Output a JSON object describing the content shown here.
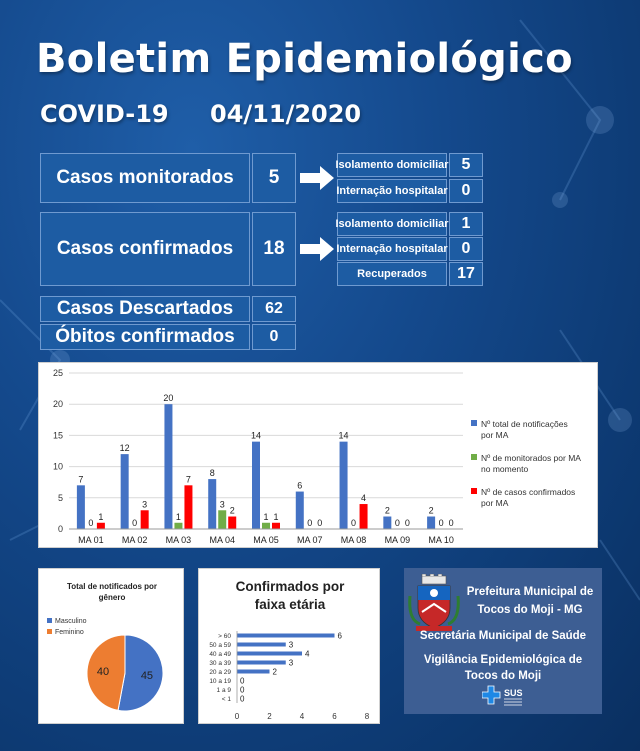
{
  "header": {
    "title": "Boletim Epidemiológico",
    "disease": "COVID-19",
    "date": "04/11/2020"
  },
  "monitorados": {
    "label": "Casos monitorados",
    "value": "5",
    "sub": [
      {
        "label": "Isolamento domiciliar",
        "value": "5"
      },
      {
        "label": "Internação hospitalar",
        "value": "0"
      }
    ]
  },
  "confirmados": {
    "label": "Casos confirmados",
    "value": "18",
    "sub": [
      {
        "label": "Isolamento domiciliar",
        "value": "1"
      },
      {
        "label": "Internação hospitalar",
        "value": "0"
      },
      {
        "label": "Recuperados",
        "value": "17"
      }
    ]
  },
  "descartados": {
    "label": "Casos Descartados",
    "value": "62"
  },
  "obitos": {
    "label": "Óbitos confirmados",
    "value": "0"
  },
  "colors": {
    "blue": "#4472c4",
    "green": "#70ad47",
    "red": "#ff0000",
    "orange": "#ed7d31",
    "pieBlue": "#4472c4",
    "hbar": "#4472c4"
  },
  "chart_data": [
    {
      "type": "bar",
      "categories": [
        "MA 01",
        "MA 02",
        "MA 03",
        "MA 04",
        "MA 05",
        "MA 07",
        "MA 08",
        "MA 09",
        "MA 10"
      ],
      "ylim": [
        0,
        25
      ],
      "yticks": [
        "0",
        "5",
        "10",
        "15",
        "20",
        "25"
      ],
      "grid": true,
      "legend_position": "right",
      "series": [
        {
          "name": "Nº total de notificações por MA",
          "values": [
            7,
            12,
            20,
            8,
            14,
            6,
            14,
            2,
            2
          ]
        },
        {
          "name": "Nº de monitorados por MA no momento",
          "values": [
            0,
            0,
            1,
            3,
            1,
            0,
            0,
            0,
            0
          ]
        },
        {
          "name": "Nº de casos confirmados por MA",
          "values": [
            1,
            3,
            7,
            2,
            1,
            0,
            4,
            0,
            0
          ]
        }
      ]
    },
    {
      "type": "pie",
      "title": "Total de notificados por gênero",
      "legend_position": "left",
      "labels": [
        "Masculino",
        "Feminino"
      ],
      "values": [
        45,
        40
      ]
    },
    {
      "type": "bar",
      "orientation": "horizontal",
      "title": "Confirmados por faixa etária",
      "categories": [
        "> 60",
        "50 a 59",
        "40 a 49",
        "30 a 39",
        "20 a 29",
        "10 a 19",
        "1 a 9",
        "< 1"
      ],
      "values": [
        6,
        3,
        4,
        3,
        2,
        0,
        0,
        0
      ],
      "xlim": [
        0,
        8
      ],
      "xticks": [
        "0",
        "2",
        "4",
        "6",
        "8"
      ]
    }
  ],
  "logo": {
    "line1": "Prefeitura Municipal de",
    "line2": "Tocos do Moji - MG",
    "line3": "Secretária Municipal de Saúde",
    "line4": "Vigilância Epidemiológica de",
    "line5": "Tocos do Moji",
    "sus": "SUS"
  }
}
